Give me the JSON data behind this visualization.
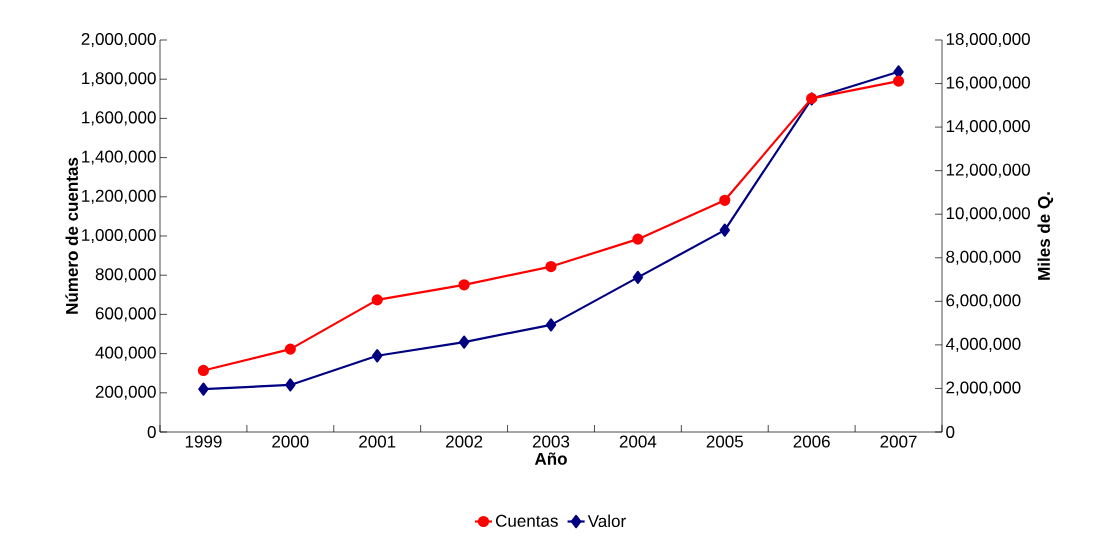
{
  "chart_data": {
    "type": "line",
    "xlabel": "Año",
    "ylabel": "Número de cuentas",
    "y2label": "Miles de Q.",
    "categories": [
      "1999",
      "2000",
      "2001",
      "2002",
      "2003",
      "2004",
      "2005",
      "2006",
      "2007"
    ],
    "series": [
      {
        "name": "Cuentas",
        "color": "#ff0000",
        "marker": "circle",
        "values": [
          314000,
          423000,
          674000,
          751000,
          844000,
          984000,
          1182000,
          1702000,
          1790000
        ]
      },
      {
        "name": "Valor",
        "color": "#000080",
        "marker": "diamond",
        "axis": "y2",
        "values": [
          1970000,
          2160000,
          3500000,
          4130000,
          4920000,
          7100000,
          9270000,
          15300000,
          16540000
        ]
      }
    ],
    "ylim": [
      0,
      2000000
    ],
    "yticks": [
      0,
      {
        "value": 200000,
        "label": "200,000"
      },
      {
        "value": 400000,
        "label": "400,000"
      },
      {
        "value": 600000,
        "label": "600,000"
      },
      {
        "value": 800000,
        "label": "800,000"
      },
      {
        "value": 1000000,
        "label": "1,000,000"
      },
      {
        "value": 1200000,
        "label": "1,200,000"
      },
      {
        "value": 1400000,
        "label": "1,400,000"
      },
      {
        "value": 1600000,
        "label": "1,600,000"
      },
      {
        "value": 1800000,
        "label": "1,800,000"
      },
      {
        "value": 2000000,
        "label": "2,000,000"
      }
    ],
    "y2lim": [
      0,
      18000000
    ],
    "y2ticks": [
      0,
      {
        "value": 2000000,
        "label": "2,000,000"
      },
      {
        "value": 4000000,
        "label": "4,000,000"
      },
      {
        "value": 6000000,
        "label": "6,000,000"
      },
      {
        "value": 8000000,
        "label": "8,000,000"
      },
      {
        "value": 10000000,
        "label": "10,000,000"
      },
      {
        "value": 12000000,
        "label": "12,000,000"
      },
      {
        "value": 14000000,
        "label": "14,000,000"
      },
      {
        "value": 16000000,
        "label": "16,000,000"
      },
      {
        "value": 18000000,
        "label": "18,000,000"
      }
    ],
    "legend": "bottom",
    "grid": false,
    "line_style": "solid"
  }
}
